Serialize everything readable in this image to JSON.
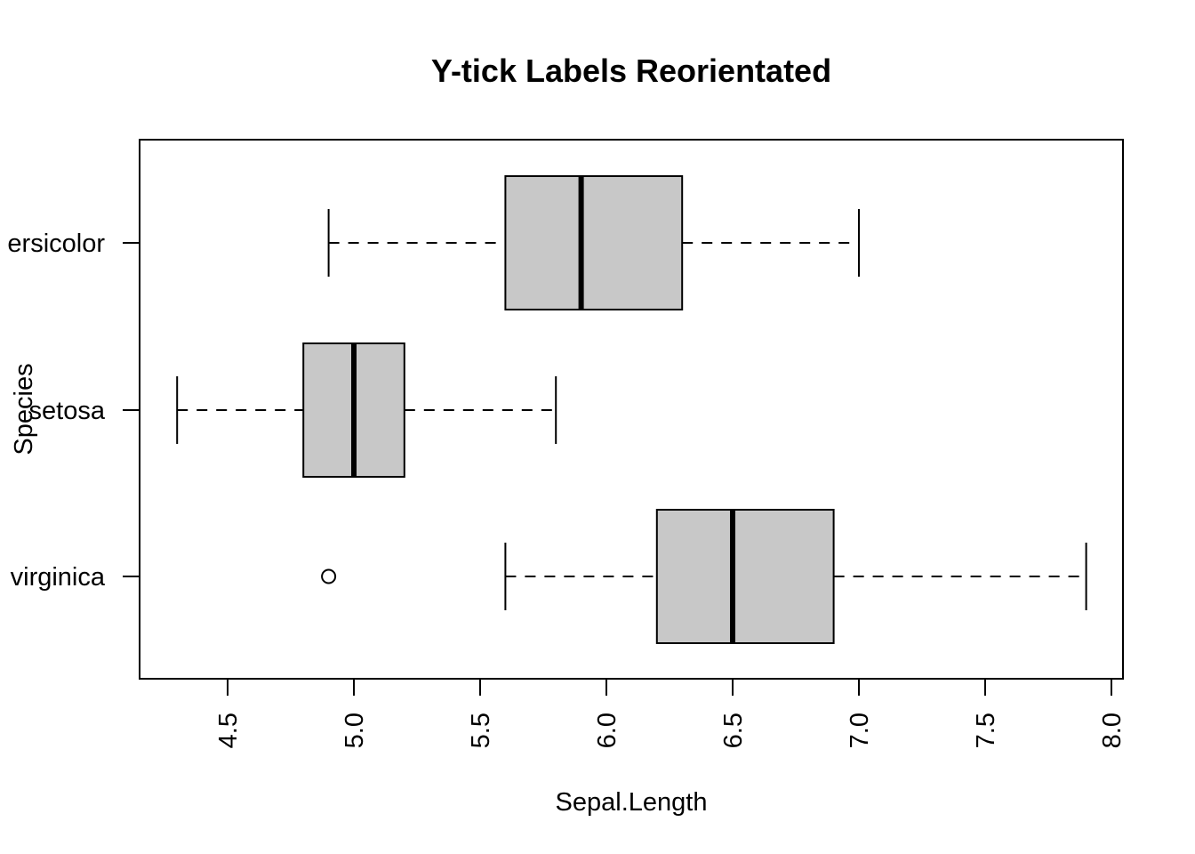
{
  "chart_data": {
    "type": "boxplot",
    "orientation": "horizontal",
    "title": "Y-tick Labels Reorientated",
    "xlabel": "Sepal.Length",
    "ylabel": "Species",
    "xlim": [
      4.15,
      8.05
    ],
    "x_ticks": [
      "4.5",
      "5.0",
      "5.5",
      "6.0",
      "6.5",
      "7.0",
      "7.5",
      "8.0"
    ],
    "x_tick_values": [
      4.5,
      5.0,
      5.5,
      6.0,
      6.5,
      7.0,
      7.5,
      8.0
    ],
    "y_tick_orientation": "horizontal",
    "x_tick_orientation": "vertical",
    "grid": false,
    "box_fill": "#c8c8c8",
    "categories": [
      "virginica",
      "setosa",
      "versicolor"
    ],
    "category_display_labels": [
      "virginica",
      "setosa",
      "ersicolor"
    ],
    "boxes": [
      {
        "category": "virginica",
        "whisker_low": 5.6,
        "q1": 6.2,
        "median": 6.5,
        "q3": 6.9,
        "whisker_high": 7.9,
        "outliers": [
          4.9
        ]
      },
      {
        "category": "setosa",
        "whisker_low": 4.3,
        "q1": 4.8,
        "median": 5.0,
        "q3": 5.2,
        "whisker_high": 5.8,
        "outliers": []
      },
      {
        "category": "versicolor",
        "whisker_low": 4.9,
        "q1": 5.6,
        "median": 5.9,
        "q3": 6.3,
        "whisker_high": 7.0,
        "outliers": []
      }
    ]
  }
}
